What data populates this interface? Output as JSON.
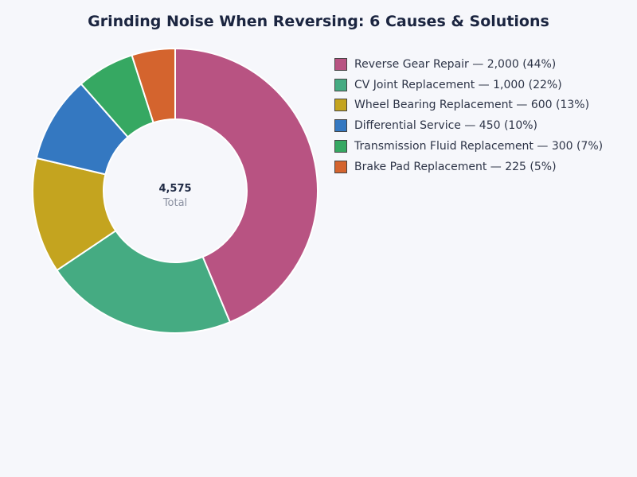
{
  "chart_data": {
    "type": "pie",
    "variant": "donut",
    "title": "Grinding Noise When Reversing: 6 Causes & Solutions",
    "center_value": "4,575",
    "center_label": "Total",
    "legend_position": "right",
    "slices": [
      {
        "label": "Reverse Gear Repair",
        "value": 2000,
        "percent": 44,
        "color": "#b85382",
        "legend": "Reverse Gear Repair — 2,000 (44%)"
      },
      {
        "label": "CV Joint Replacement",
        "value": 1000,
        "percent": 22,
        "color": "#45ab82",
        "legend": "CV Joint Replacement — 1,000 (22%)"
      },
      {
        "label": "Wheel Bearing Replacement",
        "value": 600,
        "percent": 13,
        "color": "#c4a41f",
        "legend": "Wheel Bearing Replacement — 600 (13%)"
      },
      {
        "label": "Differential Service",
        "value": 450,
        "percent": 10,
        "color": "#3478c1",
        "legend": "Differential Service — 450 (10%)"
      },
      {
        "label": "Transmission Fluid Replacement",
        "value": 300,
        "percent": 7,
        "color": "#36a862",
        "legend": "Transmission Fluid Replacement — 300 (7%)"
      },
      {
        "label": "Brake Pad Replacement",
        "value": 225,
        "percent": 5,
        "color": "#d4642e",
        "legend": "Brake Pad Replacement — 225 (5%)"
      }
    ]
  }
}
